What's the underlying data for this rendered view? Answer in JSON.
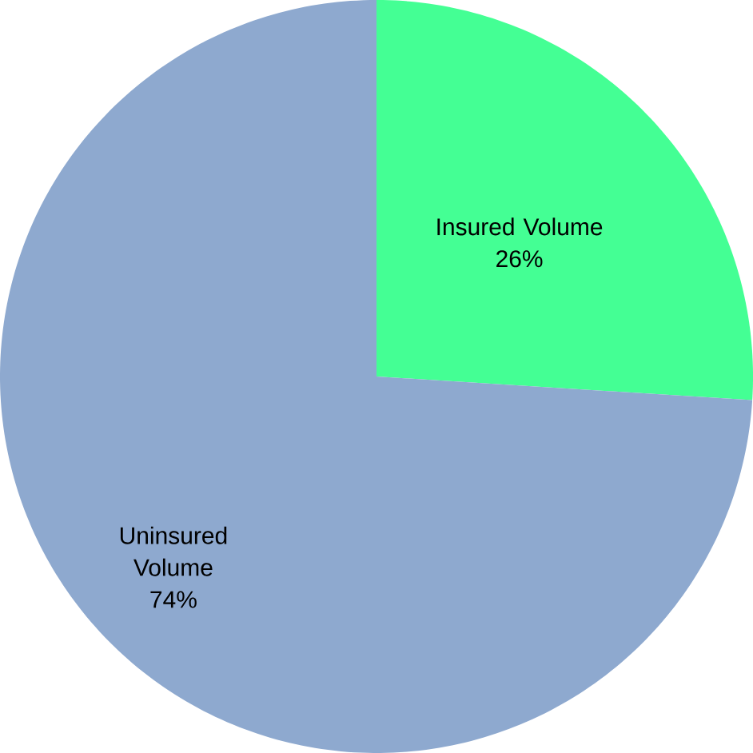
{
  "chart_data": {
    "type": "pie",
    "categories": [
      "Insured Volume",
      "Uninsured Volume"
    ],
    "values": [
      26,
      74
    ],
    "colors": [
      "#44ff94",
      "#8ea9cf"
    ],
    "value_labels": [
      "26%",
      "74%"
    ]
  }
}
